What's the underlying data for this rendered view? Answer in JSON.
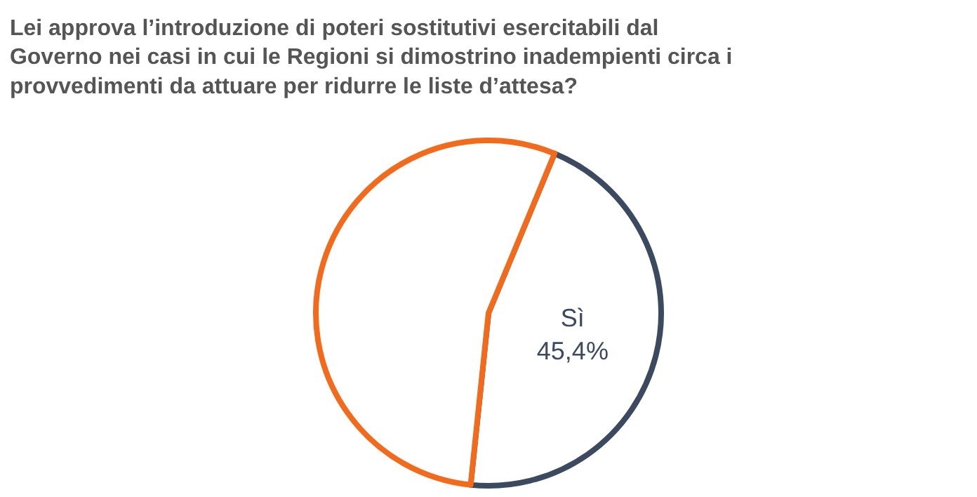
{
  "chart_data": {
    "type": "pie",
    "title": "Lei approva l’introduzione di poteri sostitutivi esercitabili dal\nGoverno nei casi in cui le Regioni si dimostrino inadempienti circa i\nprovvedimenti da attuare per ridurre le liste d’attesa?",
    "categories": [
      "Sì",
      null
    ],
    "values": [
      45.4,
      54.6
    ],
    "value_labels": [
      "45,4%",
      null
    ],
    "colors": [
      "#3b4a5e",
      "#f26a1b"
    ],
    "legend": false
  }
}
